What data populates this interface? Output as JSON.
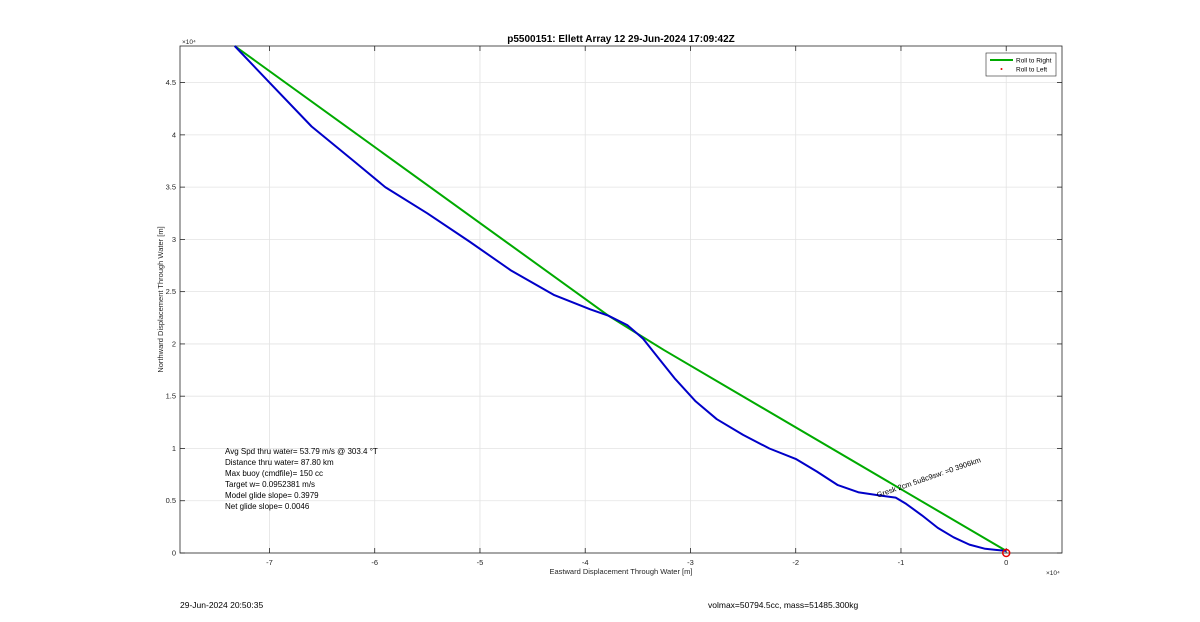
{
  "chart_data": {
    "type": "line",
    "title": "p5500151: Ellett Array 12 29-Jun-2024 17:09:42Z",
    "xlabel": "Eastward Displacement Through Water [m]",
    "ylabel": "Northward Displacement Through Water [m]",
    "x_exponent_label": "×10⁴",
    "y_exponent_label": "×10⁴",
    "x_scale_factor": 10000,
    "y_scale_factor": 10000,
    "xlim": [
      -7.85,
      0.53
    ],
    "ylim": [
      0,
      4.85
    ],
    "xticks": [
      -7,
      -6,
      -5,
      -4,
      -3,
      -2,
      -1,
      0
    ],
    "xtick_labels": [
      "-7",
      "-6",
      "-5",
      "-4",
      "-3",
      "-2",
      "-1",
      "0"
    ],
    "yticks": [
      0,
      0.5,
      1,
      1.5,
      2,
      2.5,
      3,
      3.5,
      4,
      4.5
    ],
    "ytick_labels": [
      "0",
      "0.5",
      "1",
      "1.5",
      "2",
      "2.5",
      "3",
      "3.5",
      "4",
      "4.5"
    ],
    "grid": true,
    "legend_position": "top-right",
    "legend": [
      "Roll to Right",
      "Roll to Left"
    ],
    "series": [
      {
        "name": "Roll to Right",
        "color": "#00aa00",
        "x": [
          -7.33,
          -3.78,
          -3.25,
          0.0
        ],
        "y": [
          4.85,
          2.27,
          1.94,
          0.02
        ]
      },
      {
        "name": "",
        "color": "#0000c8",
        "x": [
          -7.33,
          -7.0,
          -6.6,
          -6.2,
          -5.9,
          -5.5,
          -5.1,
          -4.7,
          -4.3,
          -3.95,
          -3.78,
          -3.6,
          -3.45,
          -3.3,
          -3.15,
          -2.95,
          -2.75,
          -2.5,
          -2.25,
          -2.0,
          -1.8,
          -1.6,
          -1.4,
          -1.2,
          -1.05,
          -0.95,
          -0.8,
          -0.65,
          -0.5,
          -0.35,
          -0.2,
          -0.1,
          0.0
        ],
        "y": [
          4.85,
          4.5,
          4.08,
          3.75,
          3.5,
          3.25,
          2.98,
          2.7,
          2.47,
          2.33,
          2.27,
          2.18,
          2.05,
          1.86,
          1.67,
          1.45,
          1.28,
          1.13,
          1.0,
          0.9,
          0.78,
          0.65,
          0.58,
          0.55,
          0.53,
          0.47,
          0.36,
          0.24,
          0.15,
          0.08,
          0.04,
          0.03,
          0.02
        ]
      },
      {
        "name": "Roll to Left",
        "color": "#e60000",
        "x": [],
        "y": []
      }
    ],
    "annotations": [
      "Avg Spd thru water= 53.79 m/s @ 303.4 °T",
      "Distance thru water= 87.80 km",
      "Max buoy (cmdfile)= 150 cc",
      "Target w= 0.0952381 m/s",
      "Model glide slope= 0.3979",
      "Net glide slope= 0.0046"
    ],
    "rotated_annotation": "Gresk 2cm 5u8c9sw: =0 3906km",
    "start_marker": {
      "x": 0.0,
      "y": 0.0,
      "color": "#e60000"
    }
  },
  "footer": {
    "left": "29-Jun-2024 20:50:35",
    "right": "volmax=50794.5cc, mass=51485.300kg"
  }
}
